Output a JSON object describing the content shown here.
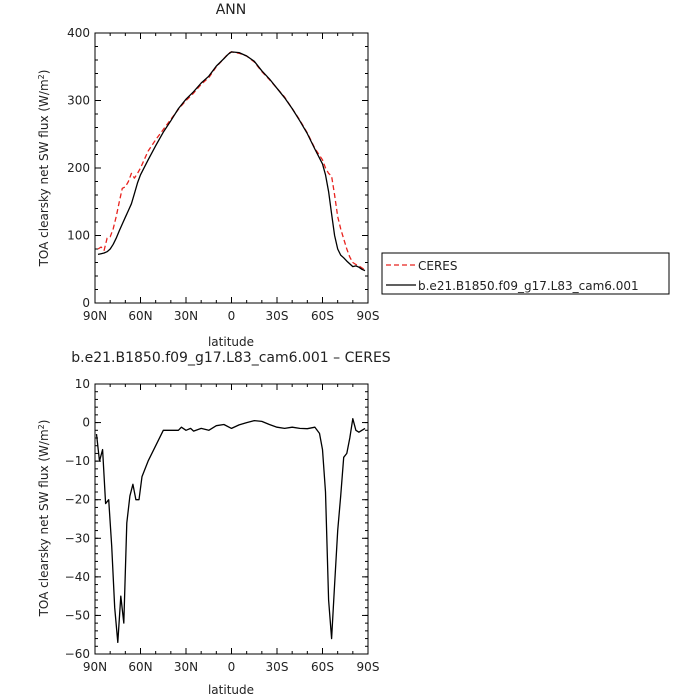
{
  "chart_data": [
    {
      "type": "line",
      "title": "ANN",
      "xlabel": "latitude",
      "ylabel": "TOA clearsky net SW flux (W/m",
      "ylabel_sup": "2",
      "ylabel_end": ")",
      "x_tick_values": [
        90,
        60,
        30,
        0,
        -30,
        -60,
        -90
      ],
      "x_tick_labels": [
        "90N",
        "60N",
        "30N",
        "0",
        "30S",
        "60S",
        "90S"
      ],
      "xlim": [
        90,
        -90
      ],
      "ylim": [
        0,
        400
      ],
      "y_ticks": [
        0,
        100,
        200,
        300,
        400
      ],
      "legend": {
        "placement": "right",
        "entries": [
          "CERES",
          "b.e21.B1850.f09_g17.L83_cam6.001"
        ]
      },
      "series": [
        {
          "name": "CERES",
          "style": "dashed",
          "color": "#e8231e",
          "points": [
            [
              88,
              80
            ],
            [
              86,
              83
            ],
            [
              84,
              78
            ],
            [
              82,
              96
            ],
            [
              80,
              98
            ],
            [
              78,
              110
            ],
            [
              76,
              128
            ],
            [
              74,
              150
            ],
            [
              72,
              170
            ],
            [
              70,
              172
            ],
            [
              68,
              180
            ],
            [
              66,
              192
            ],
            [
              64,
              185
            ],
            [
              62,
              192
            ],
            [
              60,
              200
            ],
            [
              55,
              225
            ],
            [
              50,
              242
            ],
            [
              45,
              257
            ],
            [
              40,
              272
            ],
            [
              35,
              287
            ],
            [
              30,
              300
            ],
            [
              25,
              311
            ],
            [
              20,
              324
            ],
            [
              15,
              334
            ],
            [
              10,
              350
            ],
            [
              5,
              362
            ],
            [
              2,
              370
            ],
            [
              0,
              372
            ],
            [
              -5,
              370
            ],
            [
              -10,
              366
            ],
            [
              -15,
              357
            ],
            [
              -20,
              343
            ],
            [
              -25,
              331
            ],
            [
              -30,
              318
            ],
            [
              -35,
              305
            ],
            [
              -40,
              288
            ],
            [
              -45,
              271
            ],
            [
              -50,
              252
            ],
            [
              -55,
              229
            ],
            [
              -60,
              212
            ],
            [
              -62,
              200
            ],
            [
              -64,
              192
            ],
            [
              -66,
              188
            ],
            [
              -68,
              160
            ],
            [
              -70,
              128
            ],
            [
              -72,
              110
            ],
            [
              -74,
              95
            ],
            [
              -76,
              80
            ],
            [
              -78,
              68
            ],
            [
              -80,
              60
            ],
            [
              -82,
              57
            ],
            [
              -84,
              55
            ],
            [
              -86,
              52
            ],
            [
              -88,
              49
            ]
          ]
        },
        {
          "name": "b.e21.B1850.f09_g17.L83_cam6.001",
          "style": "solid",
          "color": "#000000",
          "points": [
            [
              88,
              72
            ],
            [
              86,
              73
            ],
            [
              84,
              74
            ],
            [
              82,
              76
            ],
            [
              80,
              80
            ],
            [
              78,
              87
            ],
            [
              76,
              96
            ],
            [
              74,
              107
            ],
            [
              72,
              117
            ],
            [
              70,
              127
            ],
            [
              68,
              137
            ],
            [
              66,
              147
            ],
            [
              64,
              162
            ],
            [
              62,
              178
            ],
            [
              60,
              190
            ],
            [
              55,
              212
            ],
            [
              50,
              233
            ],
            [
              45,
              253
            ],
            [
              40,
              270
            ],
            [
              35,
              288
            ],
            [
              30,
              302
            ],
            [
              25,
              313
            ],
            [
              20,
              326
            ],
            [
              15,
              336
            ],
            [
              10,
              351
            ],
            [
              5,
              362
            ],
            [
              2,
              369
            ],
            [
              0,
              372
            ],
            [
              -5,
              371
            ],
            [
              -10,
              366
            ],
            [
              -15,
              358
            ],
            [
              -20,
              344
            ],
            [
              -25,
              332
            ],
            [
              -30,
              318
            ],
            [
              -35,
              304
            ],
            [
              -40,
              288
            ],
            [
              -45,
              270
            ],
            [
              -50,
              251
            ],
            [
              -55,
              228
            ],
            [
              -60,
              206
            ],
            [
              -62,
              190
            ],
            [
              -64,
              165
            ],
            [
              -66,
              132
            ],
            [
              -68,
              100
            ],
            [
              -70,
              80
            ],
            [
              -72,
              71
            ],
            [
              -74,
              67
            ],
            [
              -76,
              62
            ],
            [
              -78,
              58
            ],
            [
              -80,
              54
            ],
            [
              -82,
              55
            ],
            [
              -84,
              53
            ],
            [
              -86,
              50
            ],
            [
              -88,
              48
            ]
          ]
        }
      ]
    },
    {
      "type": "line",
      "title": "b.e21.B1850.f09_g17.L83_cam6.001 – CERES",
      "xlabel": "latitude",
      "ylabel": "TOA clearsky net SW flux (W/m",
      "ylabel_sup": "2",
      "ylabel_end": ")",
      "x_tick_values": [
        90,
        60,
        30,
        0,
        -30,
        -60,
        -90
      ],
      "x_tick_labels": [
        "90N",
        "60N",
        "30N",
        "0",
        "30S",
        "60S",
        "90S"
      ],
      "xlim": [
        90,
        -90
      ],
      "ylim": [
        -60,
        10
      ],
      "y_ticks": [
        -60,
        -50,
        -40,
        -30,
        -20,
        -10,
        0,
        10
      ],
      "series": [
        {
          "style": "solid",
          "color": "#000000",
          "points": [
            [
              89,
              -3
            ],
            [
              87,
              -10
            ],
            [
              85,
              -7
            ],
            [
              83,
              -21
            ],
            [
              81,
              -20
            ],
            [
              79,
              -32
            ],
            [
              77,
              -48
            ],
            [
              75,
              -57
            ],
            [
              73,
              -45
            ],
            [
              71,
              -52
            ],
            [
              69,
              -26
            ],
            [
              67,
              -19
            ],
            [
              65,
              -16
            ],
            [
              63,
              -20
            ],
            [
              61,
              -20
            ],
            [
              59,
              -14
            ],
            [
              55,
              -10
            ],
            [
              50,
              -6
            ],
            [
              45,
              -2
            ],
            [
              40,
              -2
            ],
            [
              35,
              -2
            ],
            [
              33,
              -1.2
            ],
            [
              30,
              -2
            ],
            [
              27,
              -1.5
            ],
            [
              25,
              -2.2
            ],
            [
              20,
              -1.5
            ],
            [
              15,
              -2
            ],
            [
              10,
              -0.8
            ],
            [
              5,
              -0.5
            ],
            [
              0,
              -1.5
            ],
            [
              -5,
              -0.6
            ],
            [
              -10,
              0
            ],
            [
              -15,
              0.5
            ],
            [
              -20,
              0.3
            ],
            [
              -25,
              -0.5
            ],
            [
              -30,
              -1.2
            ],
            [
              -35,
              -1.5
            ],
            [
              -40,
              -1.2
            ],
            [
              -45,
              -1.5
            ],
            [
              -50,
              -1.6
            ],
            [
              -55,
              -1.2
            ],
            [
              -58,
              -2.8
            ],
            [
              -60,
              -7
            ],
            [
              -62,
              -18
            ],
            [
              -64,
              -46
            ],
            [
              -66,
              -56
            ],
            [
              -68,
              -42
            ],
            [
              -70,
              -28
            ],
            [
              -72,
              -19
            ],
            [
              -74,
              -9
            ],
            [
              -76,
              -8
            ],
            [
              -78,
              -4
            ],
            [
              -80,
              1
            ],
            [
              -82,
              -2
            ],
            [
              -84,
              -2.5
            ],
            [
              -86,
              -2
            ],
            [
              -88,
              -1.5
            ]
          ]
        }
      ]
    }
  ]
}
